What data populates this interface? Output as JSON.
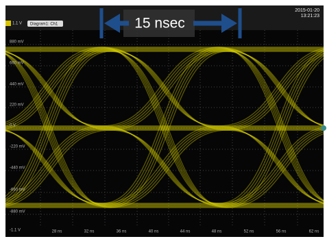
{
  "header": {
    "channel_label": "1.1 V",
    "diagram_label": "Diagram1: Ch1",
    "annotation": "15 nsec",
    "date": "2015-01-20",
    "time": "13:21:23"
  },
  "y_labels": [
    "880 mV",
    "660 mV",
    "440 mV",
    "220 mV",
    "0 V",
    "-220 mV",
    "-440 mV",
    "-660 mV",
    "-880 mV",
    "-1.1 V"
  ],
  "x_labels": [
    "28 ns",
    "32 ns",
    "36 ns",
    "40 ns",
    "44 ns",
    "48 ns",
    "52 ns",
    "56 ns",
    "62 ns"
  ]
}
